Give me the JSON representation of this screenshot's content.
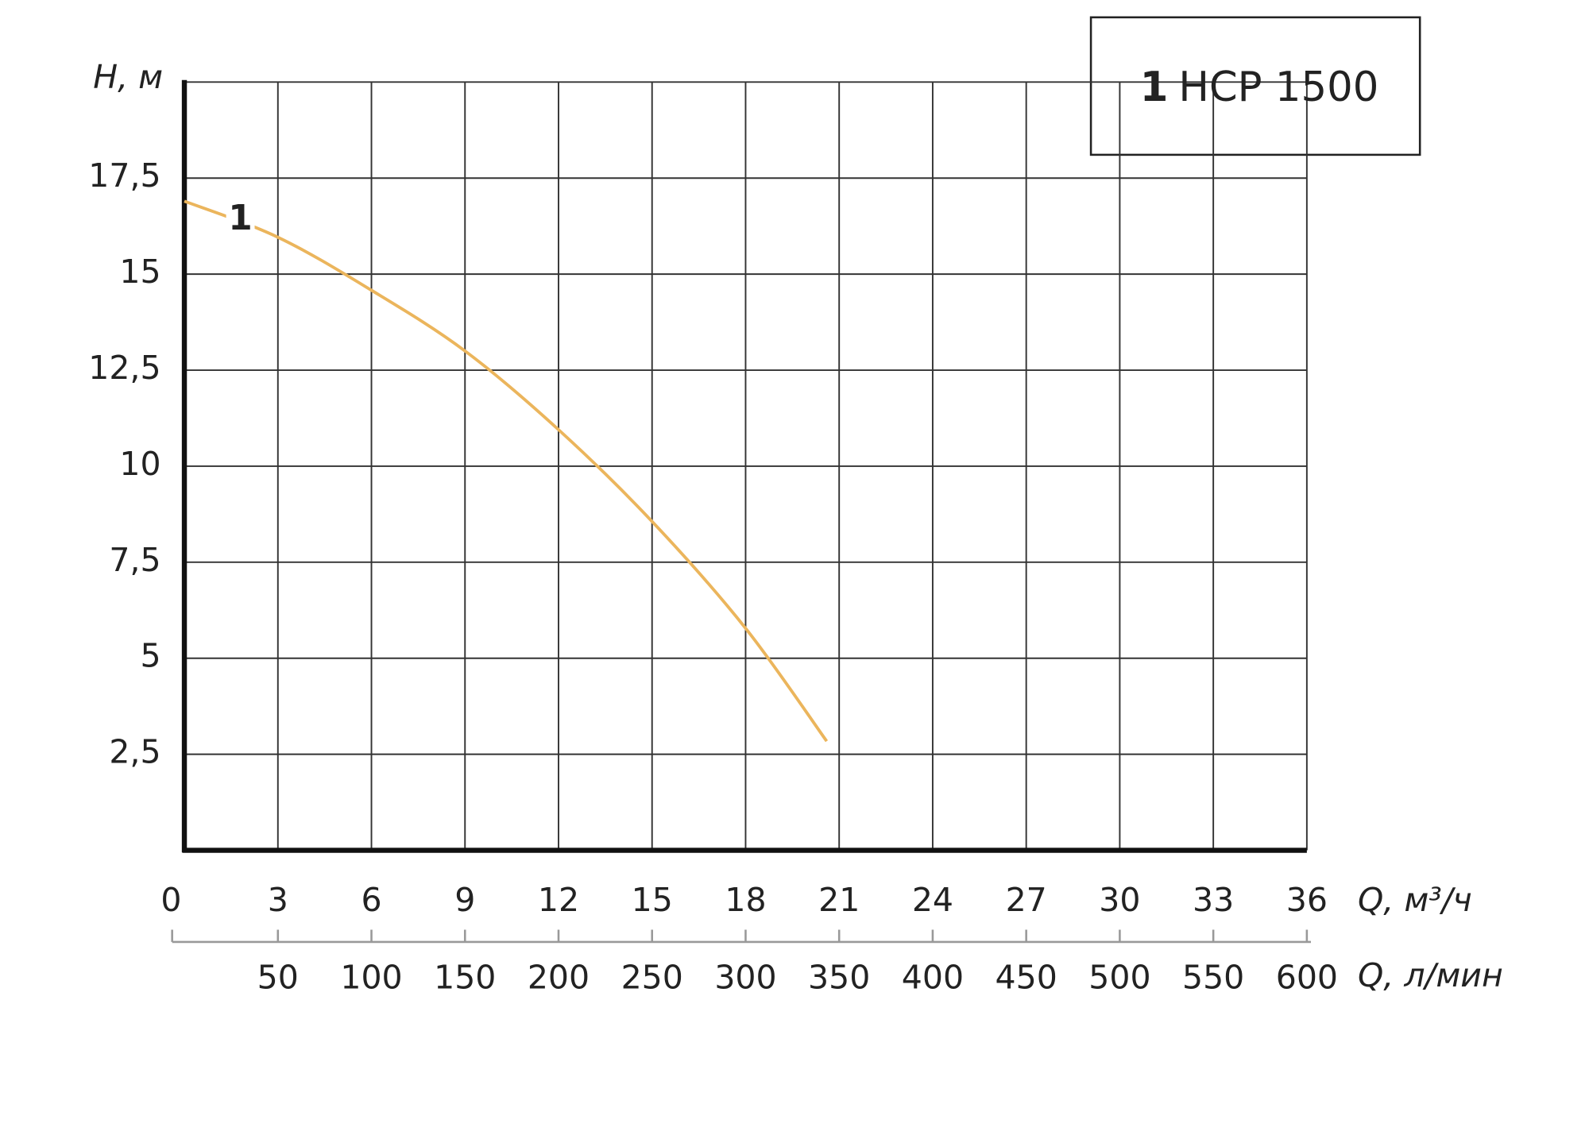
{
  "chart_data": {
    "type": "line",
    "y_label": "H, м",
    "x_label": "Q, м³/ч",
    "x2_label": "Q, л/мин",
    "x": [
      0,
      3,
      6,
      9,
      12,
      15,
      18,
      20.6
    ],
    "series": [
      {
        "name": "НСР 1500",
        "label": "1",
        "color": "#ebb55c",
        "values": [
          16.9,
          15.96,
          14.58,
          13.0,
          10.95,
          8.56,
          5.78,
          2.84
        ]
      }
    ],
    "xlim": [
      0,
      36
    ],
    "xticks": [
      0,
      3,
      6,
      9,
      12,
      15,
      18,
      21,
      24,
      27,
      30,
      33,
      36
    ],
    "ylim": [
      0,
      20
    ],
    "yticks": [
      {
        "value": 2.5,
        "label": "2,5"
      },
      5,
      {
        "value": 7.5,
        "label": "7,5"
      },
      10,
      {
        "value": 12.5,
        "label": "12,5"
      },
      15,
      {
        "value": 17.5,
        "label": "17,5"
      }
    ],
    "x2lim": [
      0,
      600
    ],
    "x2ticks": [
      50,
      100,
      150,
      200,
      250,
      300,
      350,
      400,
      450,
      500,
      550,
      600
    ],
    "grid": true
  }
}
